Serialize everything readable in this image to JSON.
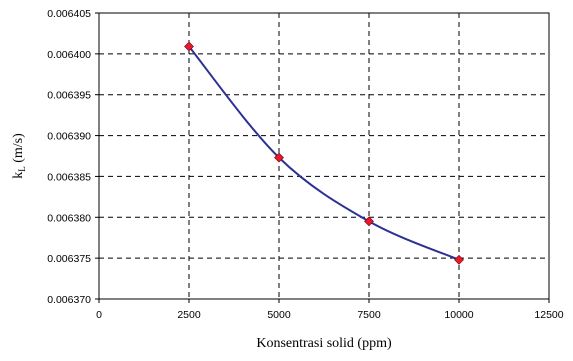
{
  "chart_data": {
    "type": "line",
    "title": "",
    "xlabel": "Konsentrasi solid (ppm)",
    "ylabel": "kL (m/s)",
    "xlim": [
      0,
      12500
    ],
    "ylim": [
      0.00637,
      0.006405
    ],
    "x_ticks": [
      "0",
      "2500",
      "5000",
      "7500",
      "10000",
      "12500"
    ],
    "y_ticks": [
      "0.006370",
      "0.006375",
      "0.006380",
      "0.006385",
      "0.006390",
      "0.006395",
      "0.006400",
      "0.006405"
    ],
    "grid": true,
    "legend": "none",
    "series": [
      {
        "x": [
          2500,
          5000,
          7500,
          10000
        ],
        "y": [
          0.0064009,
          0.0063873,
          0.0063795,
          0.0063748
        ]
      }
    ],
    "colors": {
      "line": "#2e3192",
      "marker": "#e8192c",
      "grid": "#000000"
    }
  }
}
